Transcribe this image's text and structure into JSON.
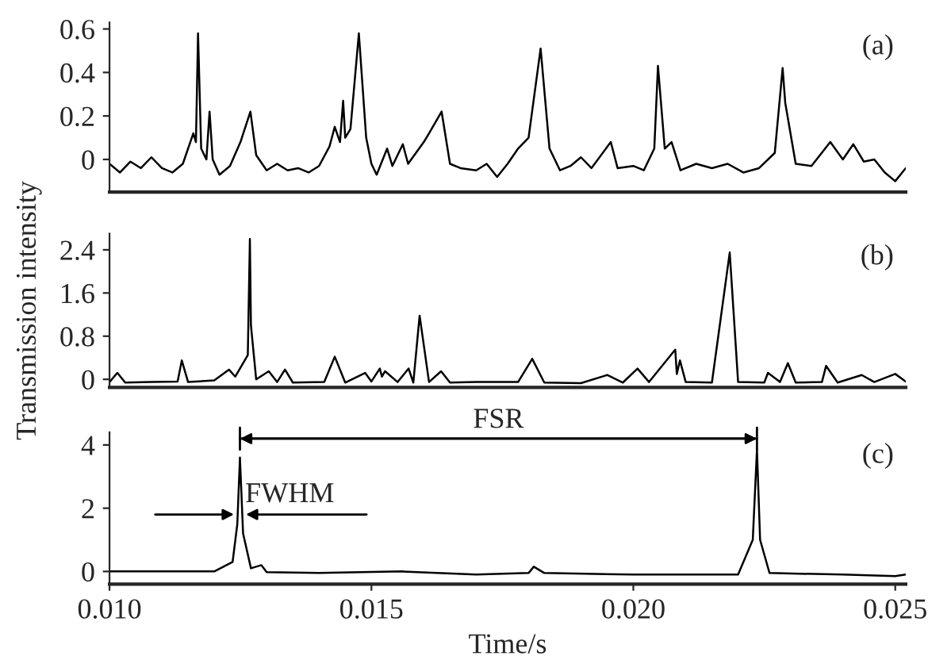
{
  "chart_data": [
    {
      "type": "line",
      "x": [
        0.01,
        0.0102,
        0.0104,
        0.0106,
        0.0108,
        0.011,
        0.0112,
        0.0114,
        0.0116,
        0.01165,
        0.01169,
        0.01175,
        0.01185,
        0.01191,
        0.01197,
        0.0121,
        0.0123,
        0.0125,
        0.01269,
        0.0128,
        0.013,
        0.0132,
        0.0134,
        0.0136,
        0.0138,
        0.014,
        0.0142,
        0.0143,
        0.0144,
        0.01446,
        0.0145,
        0.0146,
        0.01476,
        0.0149,
        0.015,
        0.0151,
        0.0153,
        0.0154,
        0.0156,
        0.0157,
        0.016,
        0.0161,
        0.01634,
        0.0165,
        0.0167,
        0.017,
        0.0172,
        0.0174,
        0.0176,
        0.0178,
        0.018,
        0.01823,
        0.0184,
        0.0186,
        0.0188,
        0.019,
        0.0192,
        0.01957,
        0.0197,
        0.02,
        0.0202,
        0.0204,
        0.02047,
        0.0206,
        0.02073,
        0.0209,
        0.0212,
        0.0215,
        0.0218,
        0.0221,
        0.0224,
        0.0227,
        0.02285,
        0.0229,
        0.0231,
        0.0234,
        0.02376,
        0.024,
        0.0242,
        0.0244,
        0.0246,
        0.0248,
        0.025,
        0.0252
      ],
      "series": [
        {
          "color": "#000000",
          "values": [
            -0.02,
            -0.06,
            -0.01,
            -0.04,
            0.01,
            -0.04,
            -0.06,
            -0.02,
            0.12,
            0.08,
            0.58,
            0.05,
            0.0,
            0.22,
            0.0,
            -0.07,
            -0.03,
            0.08,
            0.22,
            0.02,
            -0.05,
            -0.02,
            -0.05,
            -0.04,
            -0.06,
            -0.03,
            0.06,
            0.15,
            0.08,
            0.27,
            0.1,
            0.14,
            0.58,
            0.1,
            -0.02,
            -0.07,
            0.05,
            -0.03,
            0.07,
            -0.02,
            0.08,
            0.12,
            0.22,
            -0.02,
            -0.04,
            -0.05,
            -0.02,
            -0.08,
            -0.02,
            0.05,
            0.1,
            0.51,
            0.05,
            -0.05,
            -0.03,
            0.01,
            -0.04,
            0.08,
            -0.04,
            -0.03,
            -0.05,
            0.05,
            0.43,
            0.05,
            0.08,
            -0.05,
            -0.02,
            -0.04,
            -0.02,
            -0.06,
            -0.04,
            0.03,
            0.42,
            0.26,
            -0.02,
            -0.03,
            0.08,
            0.0,
            0.07,
            -0.01,
            0.0,
            -0.06,
            -0.1,
            -0.04
          ]
        }
      ],
      "xlim": [
        0.01,
        0.0252
      ],
      "ylim": [
        -0.15,
        0.63
      ],
      "yticks": [
        0,
        0.2,
        0.4,
        0.6
      ],
      "tick_labels": "y",
      "grid": false,
      "legend": false,
      "annotations": [
        "(a)"
      ]
    },
    {
      "type": "line",
      "x": [
        0.01,
        0.01015,
        0.0103,
        0.0108,
        0.0113,
        0.01138,
        0.0115,
        0.012,
        0.01228,
        0.0124,
        0.01264,
        0.01268,
        0.0127,
        0.0128,
        0.01304,
        0.0132,
        0.01335,
        0.0135,
        0.0141,
        0.0143,
        0.0145,
        0.01488,
        0.015,
        0.01516,
        0.0152,
        0.01526,
        0.0155,
        0.01571,
        0.0158,
        0.01592,
        0.0161,
        0.01633,
        0.0165,
        0.017,
        0.0178,
        0.01807,
        0.0183,
        0.019,
        0.0195,
        0.0198,
        0.02008,
        0.0203,
        0.0208,
        0.02083,
        0.02089,
        0.021,
        0.0215,
        0.02184,
        0.022,
        0.0225,
        0.02257,
        0.0228,
        0.02295,
        0.0231,
        0.0236,
        0.02368,
        0.0239,
        0.02436,
        0.0246,
        0.025,
        0.0252
      ],
      "series": [
        {
          "color": "#000000",
          "values": [
            -0.05,
            0.12,
            -0.06,
            -0.05,
            -0.04,
            0.35,
            -0.05,
            -0.02,
            0.18,
            0.05,
            0.45,
            2.6,
            1.0,
            0.0,
            0.15,
            -0.05,
            0.18,
            -0.06,
            -0.05,
            0.42,
            -0.06,
            0.12,
            -0.04,
            0.2,
            0.05,
            0.15,
            -0.05,
            0.2,
            -0.06,
            1.18,
            -0.05,
            0.15,
            -0.06,
            -0.05,
            -0.05,
            0.38,
            -0.06,
            -0.07,
            0.08,
            -0.06,
            0.2,
            -0.05,
            0.55,
            0.1,
            0.35,
            -0.05,
            -0.06,
            2.35,
            -0.05,
            -0.06,
            0.12,
            -0.05,
            0.3,
            -0.06,
            -0.05,
            0.25,
            -0.06,
            0.08,
            -0.05,
            0.1,
            -0.04
          ]
        }
      ],
      "xlim": [
        0.01,
        0.0252
      ],
      "ylim": [
        -0.15,
        2.7
      ],
      "yticks": [
        0,
        0.8,
        1.6,
        2.4
      ],
      "tick_labels": "y",
      "grid": false,
      "legend": false,
      "ylabel": "Transmission intensity",
      "annotations": [
        "(b)"
      ]
    },
    {
      "type": "line",
      "x": [
        0.01,
        0.011,
        0.012,
        0.01235,
        0.01244,
        0.01249,
        0.01255,
        0.0127,
        0.0129,
        0.013,
        0.014,
        0.0156,
        0.017,
        0.018,
        0.0181,
        0.0183,
        0.02,
        0.022,
        0.02228,
        0.02236,
        0.02242,
        0.0226,
        0.024,
        0.025,
        0.0252
      ],
      "series": [
        {
          "color": "#000000",
          "values": [
            0.0,
            0.0,
            0.0,
            0.3,
            1.5,
            3.6,
            1.2,
            0.1,
            0.2,
            -0.02,
            -0.05,
            0.0,
            -0.1,
            -0.05,
            0.15,
            -0.05,
            -0.1,
            -0.1,
            1.0,
            3.85,
            1.0,
            -0.05,
            -0.1,
            -0.15,
            -0.1
          ]
        }
      ],
      "xlim": [
        0.01,
        0.0252
      ],
      "ylim": [
        -0.4,
        4.4
      ],
      "yticks": [
        0,
        2,
        4
      ],
      "xticks": [
        {
          "value": 0.01,
          "label": "0.010"
        },
        {
          "value": 0.015,
          "label": "0.015"
        },
        {
          "value": 0.02,
          "label": "0.020"
        },
        {
          "value": 0.025,
          "label": "0.025"
        }
      ],
      "grid": false,
      "legend": false,
      "xlabel": "Time/s",
      "annotations": [
        "(c)",
        "FSR",
        {
          "text": "FWHM",
          "x": 0.01249,
          "y": 1.8
        }
      ]
    }
  ]
}
